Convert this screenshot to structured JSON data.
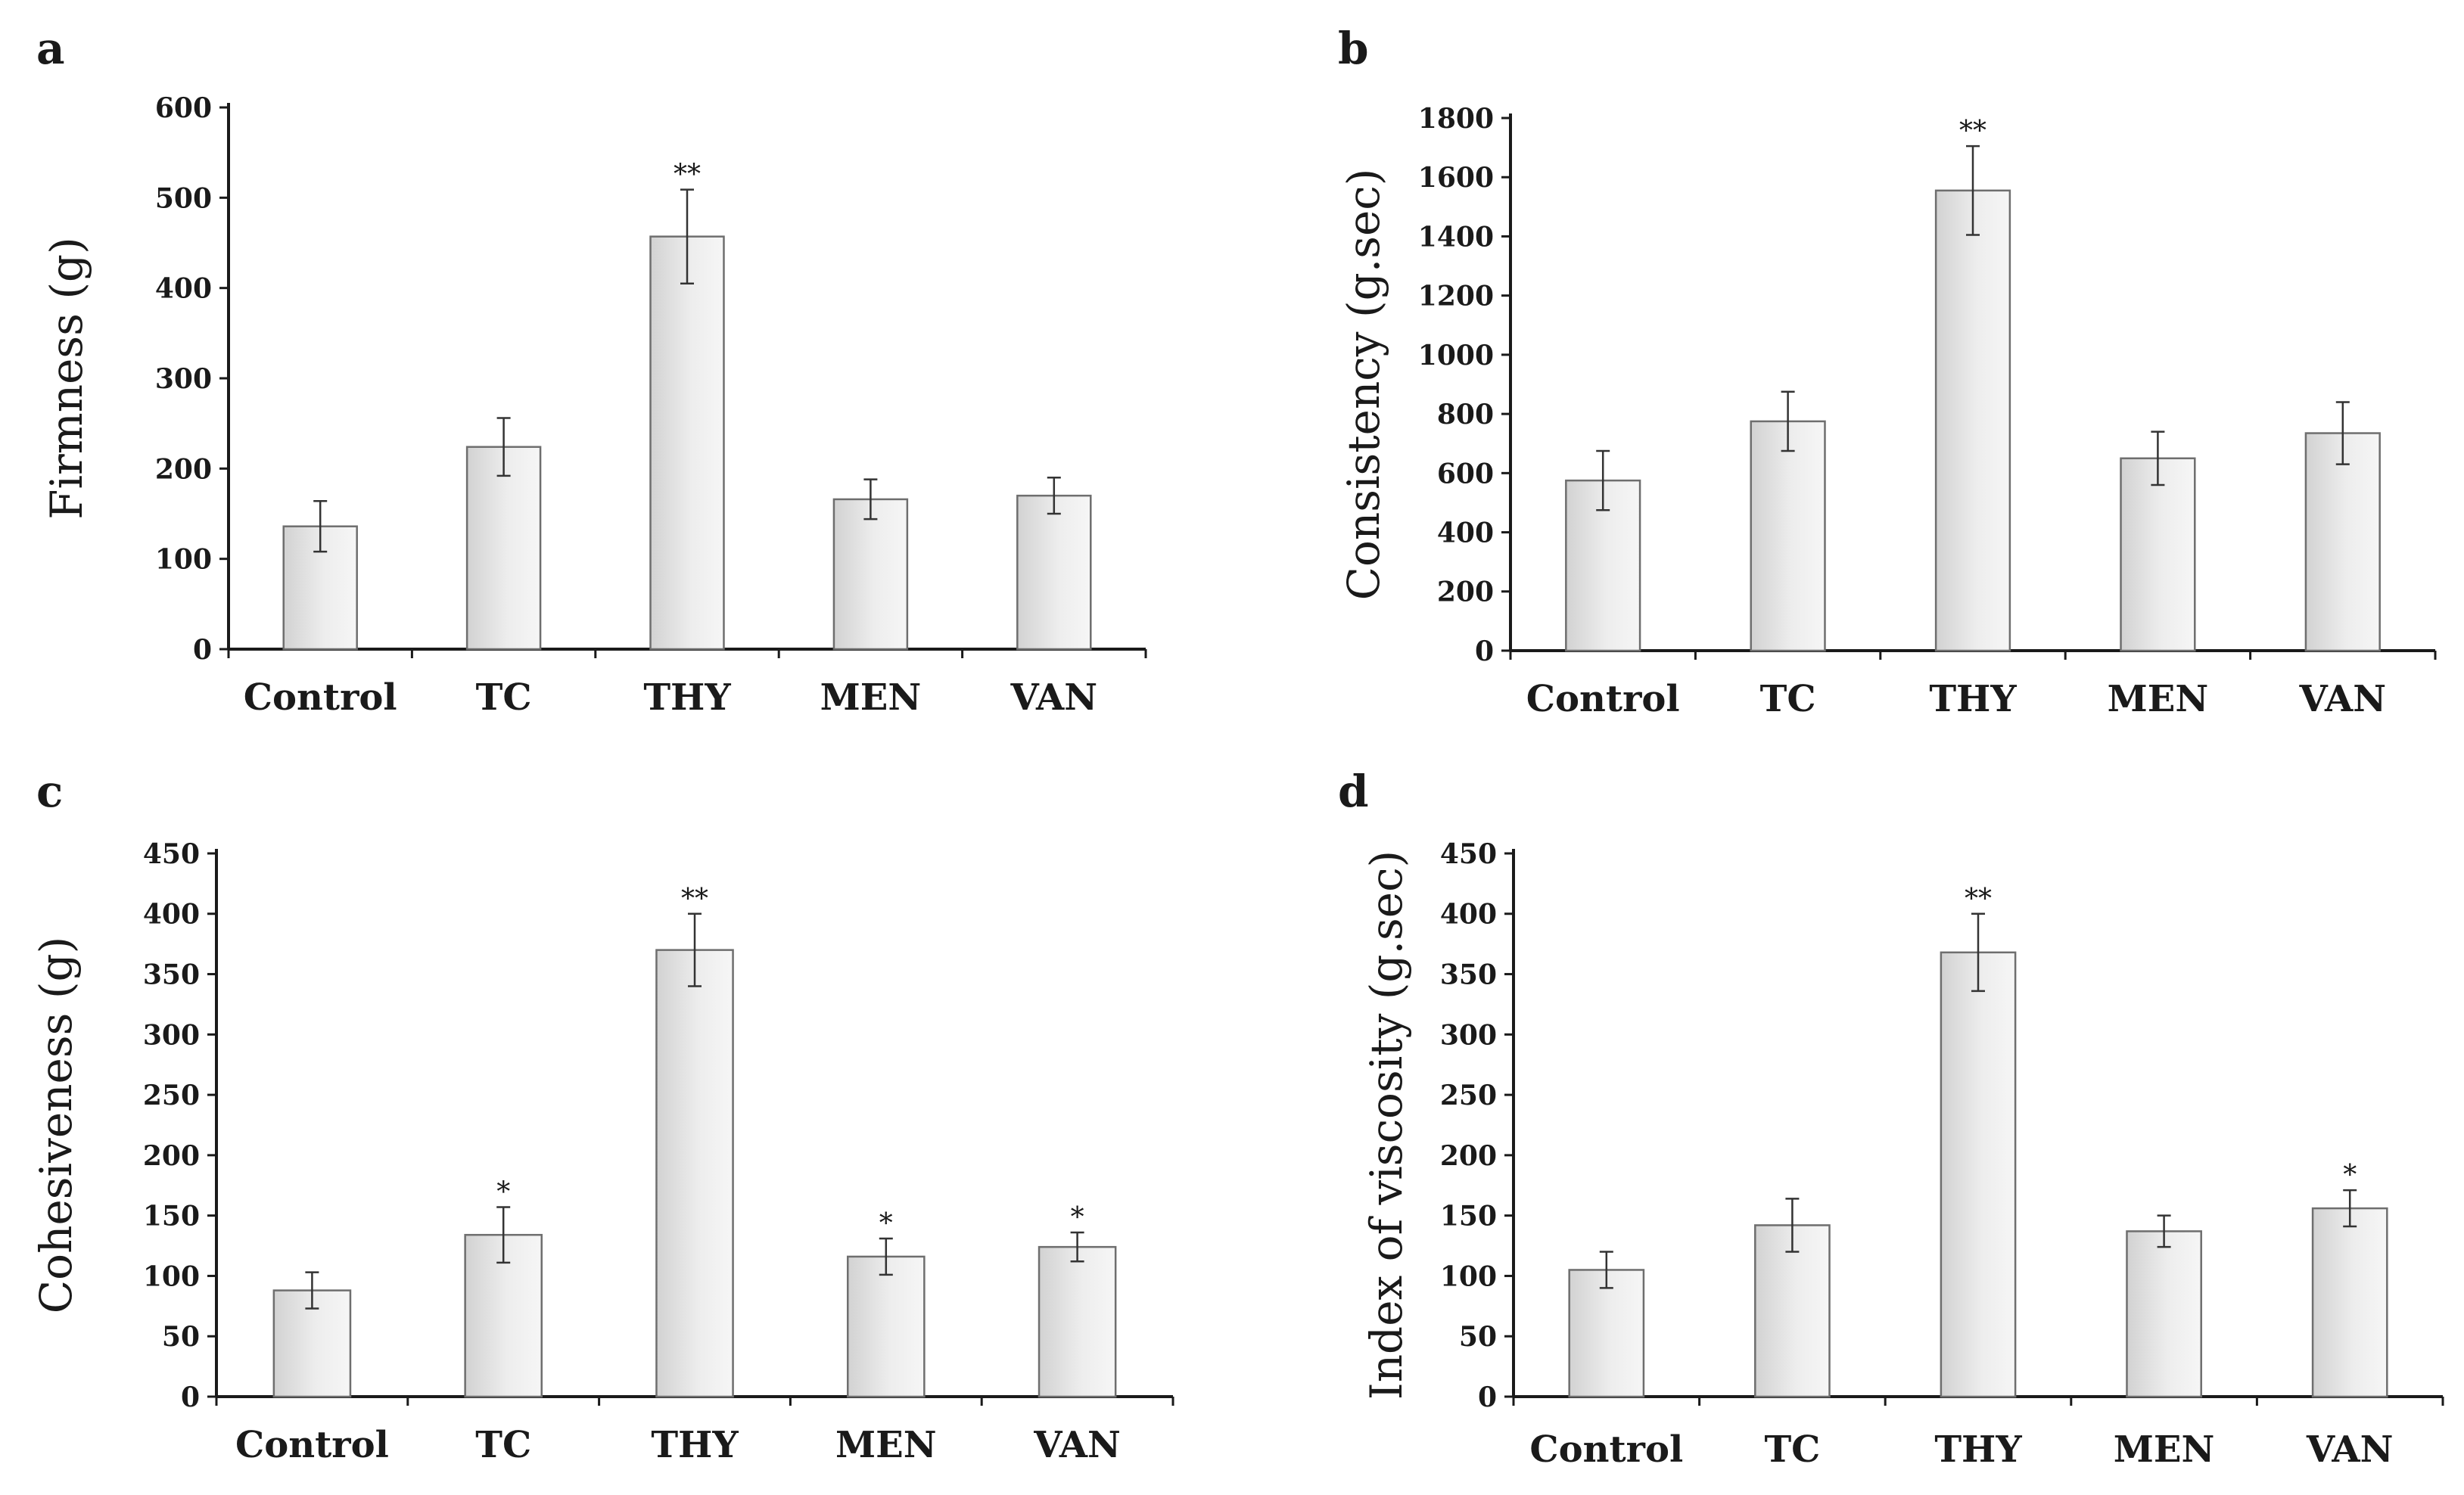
{
  "chart_data": [
    {
      "panel": "a",
      "type": "bar",
      "categories": [
        "Control",
        "TC",
        "THY",
        "MEN",
        "VAN"
      ],
      "values": [
        136,
        224,
        457,
        166,
        170
      ],
      "errors": [
        28,
        32,
        52,
        22,
        20
      ],
      "significance": [
        "",
        "",
        "**",
        "",
        ""
      ],
      "ylabel": "Firmness (g)",
      "ylim": [
        0,
        600
      ],
      "yticks": [
        0,
        100,
        200,
        300,
        400,
        500,
        600
      ]
    },
    {
      "panel": "b",
      "type": "bar",
      "categories": [
        "Control",
        "TC",
        "THY",
        "MEN",
        "VAN"
      ],
      "values": [
        575,
        775,
        1555,
        650,
        735
      ],
      "errors": [
        100,
        100,
        150,
        90,
        105
      ],
      "significance": [
        "",
        "",
        "**",
        "",
        ""
      ],
      "ylabel": "Consistency (g.sec)",
      "ylim": [
        0,
        1800
      ],
      "yticks": [
        0,
        200,
        400,
        600,
        800,
        1000,
        1200,
        1400,
        1600,
        1800
      ]
    },
    {
      "panel": "c",
      "type": "bar",
      "categories": [
        "Control",
        "TC",
        "THY",
        "MEN",
        "VAN"
      ],
      "values": [
        88,
        134,
        370,
        116,
        124
      ],
      "errors": [
        15,
        23,
        30,
        15,
        12
      ],
      "significance": [
        "",
        "*",
        "**",
        "*",
        "*"
      ],
      "ylabel": "Cohesiveness (g)",
      "ylim": [
        0,
        450
      ],
      "yticks": [
        0,
        50,
        100,
        150,
        200,
        250,
        300,
        350,
        400,
        450
      ]
    },
    {
      "panel": "d",
      "type": "bar",
      "categories": [
        "Control",
        "TC",
        "THY",
        "MEN",
        "VAN"
      ],
      "values": [
        105,
        142,
        368,
        137,
        156
      ],
      "errors": [
        15,
        22,
        32,
        13,
        15
      ],
      "significance": [
        "",
        "",
        "**",
        "",
        "*"
      ],
      "ylabel": "Index of viscosity (g.sec)",
      "ylim": [
        0,
        450
      ],
      "yticks": [
        0,
        50,
        100,
        150,
        200,
        250,
        300,
        350,
        400,
        450
      ]
    }
  ]
}
